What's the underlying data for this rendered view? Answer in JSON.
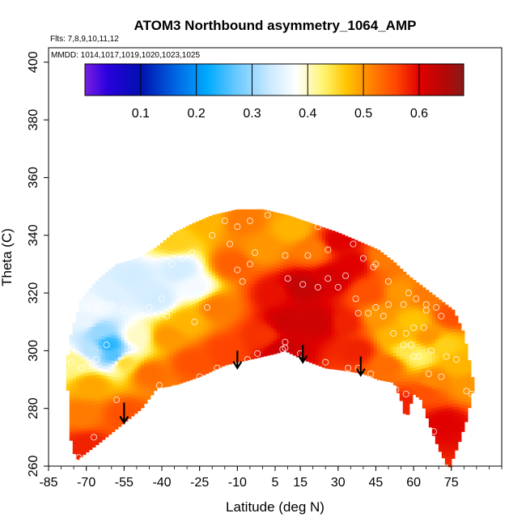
{
  "chart_data": {
    "type": "heatmap",
    "title": "ATOM3 Northbound asymmetry_1064_AMP",
    "flights_note": "Flts: 7,8,9,10,11,12",
    "dates_note": "MMDD: 1014,1017,1019,1020,1023,1025",
    "xlabel": "Latitude (deg N)",
    "ylabel": "Theta (C)",
    "xlim": [
      -85,
      95
    ],
    "ylim": [
      260,
      405
    ],
    "x_ticks": [
      -85,
      -70,
      -55,
      -40,
      -25,
      -10,
      5,
      15,
      30,
      45,
      60,
      75
    ],
    "x_tick_labels": [
      "-85",
      "-70",
      "-55",
      "-40",
      "-25",
      "-10",
      "5",
      "15",
      "30",
      "45",
      "60",
      "75"
    ],
    "y_ticks": [
      260,
      280,
      300,
      320,
      340,
      360,
      380,
      400
    ],
    "y_tick_labels": [
      "260",
      "280",
      "300",
      "320",
      "340",
      "360",
      "380",
      "400"
    ],
    "colorbar": {
      "min": 0.0,
      "max": 0.68,
      "ticks": [
        0.1,
        0.2,
        0.3,
        0.4,
        0.5,
        0.6
      ],
      "tick_labels": [
        "0.1",
        "0.2",
        "0.3",
        "0.4",
        "0.5",
        "0.6"
      ],
      "stops": [
        {
          "v": 0.0,
          "c": "#7a1fe0"
        },
        {
          "v": 0.04,
          "c": "#2a00dd"
        },
        {
          "v": 0.1,
          "c": "#0010b0"
        },
        {
          "v": 0.17,
          "c": "#0070e8"
        },
        {
          "v": 0.22,
          "c": "#00aaff"
        },
        {
          "v": 0.27,
          "c": "#66c8ff"
        },
        {
          "v": 0.33,
          "c": "#c8e8ff"
        },
        {
          "v": 0.38,
          "c": "#ffffff"
        },
        {
          "v": 0.43,
          "c": "#fff36b"
        },
        {
          "v": 0.47,
          "c": "#ffc400"
        },
        {
          "v": 0.51,
          "c": "#ff8800"
        },
        {
          "v": 0.56,
          "c": "#ff4400"
        },
        {
          "v": 0.6,
          "c": "#e00000"
        },
        {
          "v": 0.65,
          "c": "#b00808"
        },
        {
          "v": 0.68,
          "c": "#8a1a1a"
        }
      ]
    },
    "domain_top": [
      [
        -78,
        295
      ],
      [
        -76,
        306
      ],
      [
        -72,
        318
      ],
      [
        -65,
        325
      ],
      [
        -58,
        330
      ],
      [
        -50,
        332
      ],
      [
        -42,
        336
      ],
      [
        -35,
        341
      ],
      [
        -28,
        344
      ],
      [
        -20,
        347
      ],
      [
        -10,
        349
      ],
      [
        0,
        349
      ],
      [
        10,
        347
      ],
      [
        20,
        344
      ],
      [
        30,
        341
      ],
      [
        38,
        338
      ],
      [
        46,
        335
      ],
      [
        52,
        331
      ],
      [
        58,
        326
      ],
      [
        64,
        322
      ],
      [
        70,
        318
      ],
      [
        76,
        314
      ],
      [
        80,
        306
      ],
      [
        84,
        288
      ]
    ],
    "domain_bottom": [
      [
        -78,
        295
      ],
      [
        -76,
        268
      ],
      [
        -74,
        262
      ],
      [
        -65,
        268
      ],
      [
        -55,
        275
      ],
      [
        -48,
        280
      ],
      [
        -42,
        287
      ],
      [
        -35,
        288
      ],
      [
        -25,
        291
      ],
      [
        -15,
        295
      ],
      [
        -5,
        297
      ],
      [
        5,
        299
      ],
      [
        9,
        300
      ],
      [
        16,
        297
      ],
      [
        25,
        294
      ],
      [
        34,
        293
      ],
      [
        40,
        292
      ],
      [
        46,
        290
      ],
      [
        52,
        289
      ],
      [
        55,
        283
      ],
      [
        57,
        276
      ],
      [
        60,
        285
      ],
      [
        63,
        283
      ],
      [
        66,
        275
      ],
      [
        70,
        266
      ],
      [
        74,
        259
      ],
      [
        78,
        268
      ],
      [
        81,
        276
      ],
      [
        84,
        288
      ]
    ],
    "value_field": [
      {
        "x": -78,
        "y": 296,
        "v": 0.42
      },
      {
        "x": -74,
        "y": 296,
        "v": 0.42
      },
      {
        "x": -70,
        "y": 310,
        "v": 0.36
      },
      {
        "x": -65,
        "y": 307,
        "v": 0.3
      },
      {
        "x": -61,
        "y": 302,
        "v": 0.24
      },
      {
        "x": -59,
        "y": 298,
        "v": 0.26
      },
      {
        "x": -68,
        "y": 300,
        "v": 0.32
      },
      {
        "x": -66,
        "y": 315,
        "v": 0.37
      },
      {
        "x": -60,
        "y": 320,
        "v": 0.35
      },
      {
        "x": -52,
        "y": 325,
        "v": 0.34
      },
      {
        "x": -42,
        "y": 318,
        "v": 0.34
      },
      {
        "x": -33,
        "y": 328,
        "v": 0.34
      },
      {
        "x": -27,
        "y": 322,
        "v": 0.37
      },
      {
        "x": -35,
        "y": 338,
        "v": 0.46
      },
      {
        "x": -22,
        "y": 345,
        "v": 0.48
      },
      {
        "x": -50,
        "y": 305,
        "v": 0.4
      },
      {
        "x": -55,
        "y": 296,
        "v": 0.45
      },
      {
        "x": -68,
        "y": 288,
        "v": 0.49
      },
      {
        "x": -72,
        "y": 278,
        "v": 0.52
      },
      {
        "x": -70,
        "y": 267,
        "v": 0.58
      },
      {
        "x": -55,
        "y": 278,
        "v": 0.55
      },
      {
        "x": -45,
        "y": 292,
        "v": 0.53
      },
      {
        "x": -38,
        "y": 305,
        "v": 0.5
      },
      {
        "x": -30,
        "y": 310,
        "v": 0.48
      },
      {
        "x": -28,
        "y": 296,
        "v": 0.55
      },
      {
        "x": -15,
        "y": 300,
        "v": 0.56
      },
      {
        "x": -18,
        "y": 315,
        "v": 0.52
      },
      {
        "x": -12,
        "y": 330,
        "v": 0.54
      },
      {
        "x": -8,
        "y": 345,
        "v": 0.52
      },
      {
        "x": 0,
        "y": 335,
        "v": 0.5
      },
      {
        "x": 5,
        "y": 320,
        "v": 0.59
      },
      {
        "x": 0,
        "y": 305,
        "v": 0.57
      },
      {
        "x": 10,
        "y": 310,
        "v": 0.62
      },
      {
        "x": 15,
        "y": 322,
        "v": 0.63
      },
      {
        "x": 20,
        "y": 335,
        "v": 0.52
      },
      {
        "x": 12,
        "y": 342,
        "v": 0.48
      },
      {
        "x": 22,
        "y": 310,
        "v": 0.62
      },
      {
        "x": 28,
        "y": 325,
        "v": 0.61
      },
      {
        "x": 30,
        "y": 338,
        "v": 0.6
      },
      {
        "x": 36,
        "y": 330,
        "v": 0.6
      },
      {
        "x": 33,
        "y": 310,
        "v": 0.58
      },
      {
        "x": 38,
        "y": 300,
        "v": 0.58
      },
      {
        "x": 42,
        "y": 320,
        "v": 0.55
      },
      {
        "x": 48,
        "y": 332,
        "v": 0.52
      },
      {
        "x": 46,
        "y": 312,
        "v": 0.5
      },
      {
        "x": 52,
        "y": 305,
        "v": 0.48
      },
      {
        "x": 50,
        "y": 295,
        "v": 0.53
      },
      {
        "x": 55,
        "y": 320,
        "v": 0.5
      },
      {
        "x": 57,
        "y": 300,
        "v": 0.44
      },
      {
        "x": 60,
        "y": 310,
        "v": 0.47
      },
      {
        "x": 62,
        "y": 298,
        "v": 0.43
      },
      {
        "x": 64,
        "y": 320,
        "v": 0.52
      },
      {
        "x": 66,
        "y": 305,
        "v": 0.5
      },
      {
        "x": 68,
        "y": 290,
        "v": 0.51
      },
      {
        "x": 72,
        "y": 302,
        "v": 0.46
      },
      {
        "x": 75,
        "y": 312,
        "v": 0.55
      },
      {
        "x": 78,
        "y": 295,
        "v": 0.48
      },
      {
        "x": 72,
        "y": 275,
        "v": 0.6
      },
      {
        "x": 82,
        "y": 288,
        "v": 0.5
      },
      {
        "x": 58,
        "y": 282,
        "v": 0.58
      },
      {
        "x": 64,
        "y": 285,
        "v": 0.55
      },
      {
        "x": 8,
        "y": 300,
        "v": 0.62
      }
    ],
    "sample_points": [
      [
        -73,
        263
      ],
      [
        -67,
        270
      ],
      [
        -58,
        283
      ],
      [
        -41,
        288
      ],
      [
        -35,
        287
      ],
      [
        -25,
        291
      ],
      [
        -18,
        294
      ],
      [
        -6,
        297
      ],
      [
        -2,
        299
      ],
      [
        8,
        300.5
      ],
      [
        9,
        301
      ],
      [
        9,
        303
      ],
      [
        15,
        299
      ],
      [
        25,
        296
      ],
      [
        34,
        294
      ],
      [
        38,
        294
      ],
      [
        43,
        292
      ],
      [
        52,
        287
      ],
      [
        53,
        286.5
      ],
      [
        57,
        285
      ],
      [
        62,
        279
      ],
      [
        62,
        278
      ],
      [
        68,
        272
      ],
      [
        66,
        292
      ],
      [
        71,
        291
      ],
      [
        73,
        298
      ],
      [
        77,
        297
      ],
      [
        81,
        286
      ],
      [
        83,
        285
      ],
      [
        60,
        298
      ],
      [
        62,
        298
      ],
      [
        56,
        302
      ],
      [
        57,
        306
      ],
      [
        60,
        308
      ],
      [
        59,
        302
      ],
      [
        64,
        308
      ],
      [
        65,
        314
      ],
      [
        67,
        300
      ],
      [
        71,
        312
      ],
      [
        77,
        318
      ],
      [
        48,
        312
      ],
      [
        52,
        306
      ],
      [
        50,
        316
      ],
      [
        45,
        315
      ],
      [
        42,
        313
      ],
      [
        38,
        313
      ],
      [
        37,
        318
      ],
      [
        30,
        322
      ],
      [
        22,
        322
      ],
      [
        16,
        323
      ],
      [
        26,
        325
      ],
      [
        33,
        326
      ],
      [
        44,
        329
      ],
      [
        50,
        324
      ],
      [
        56,
        316
      ],
      [
        58,
        320
      ],
      [
        61,
        318
      ],
      [
        65,
        316
      ],
      [
        69,
        315
      ],
      [
        52,
        333
      ],
      [
        54,
        334
      ],
      [
        45,
        330
      ],
      [
        40,
        332
      ],
      [
        36,
        337
      ],
      [
        26,
        335
      ],
      [
        18,
        333
      ],
      [
        9,
        333
      ],
      [
        10,
        325
      ],
      [
        -8,
        324
      ],
      [
        -22,
        315
      ],
      [
        -27,
        310
      ],
      [
        -38,
        312
      ],
      [
        -48,
        312
      ],
      [
        -55,
        314
      ],
      [
        -60,
        316
      ],
      [
        -65,
        315
      ],
      [
        -70,
        315
      ],
      [
        -62,
        302
      ],
      [
        -66,
        297
      ],
      [
        -72,
        294
      ],
      [
        -76,
        296
      ],
      [
        -50,
        310
      ],
      [
        -45,
        315
      ],
      [
        -40,
        318
      ],
      [
        -36,
        330
      ],
      [
        -32,
        332
      ],
      [
        -28,
        334
      ],
      [
        -25,
        329
      ],
      [
        -20,
        340
      ],
      [
        -15,
        345
      ],
      [
        -10,
        343
      ],
      [
        -5,
        345
      ],
      [
        2,
        347
      ],
      [
        8,
        350
      ],
      [
        20,
        346
      ],
      [
        22,
        343
      ],
      [
        -13,
        337
      ],
      [
        -5,
        330
      ],
      [
        -3,
        334
      ],
      [
        -10,
        328
      ]
    ],
    "arrows": [
      {
        "x": -55,
        "y_top": 282,
        "y_bottom": 275
      },
      {
        "x": -10,
        "y_top": 300,
        "y_bottom": 294
      },
      {
        "x": 16,
        "y_top": 302,
        "y_bottom": 296
      },
      {
        "x": 39,
        "y_top": 298,
        "y_bottom": 291.5
      }
    ]
  }
}
